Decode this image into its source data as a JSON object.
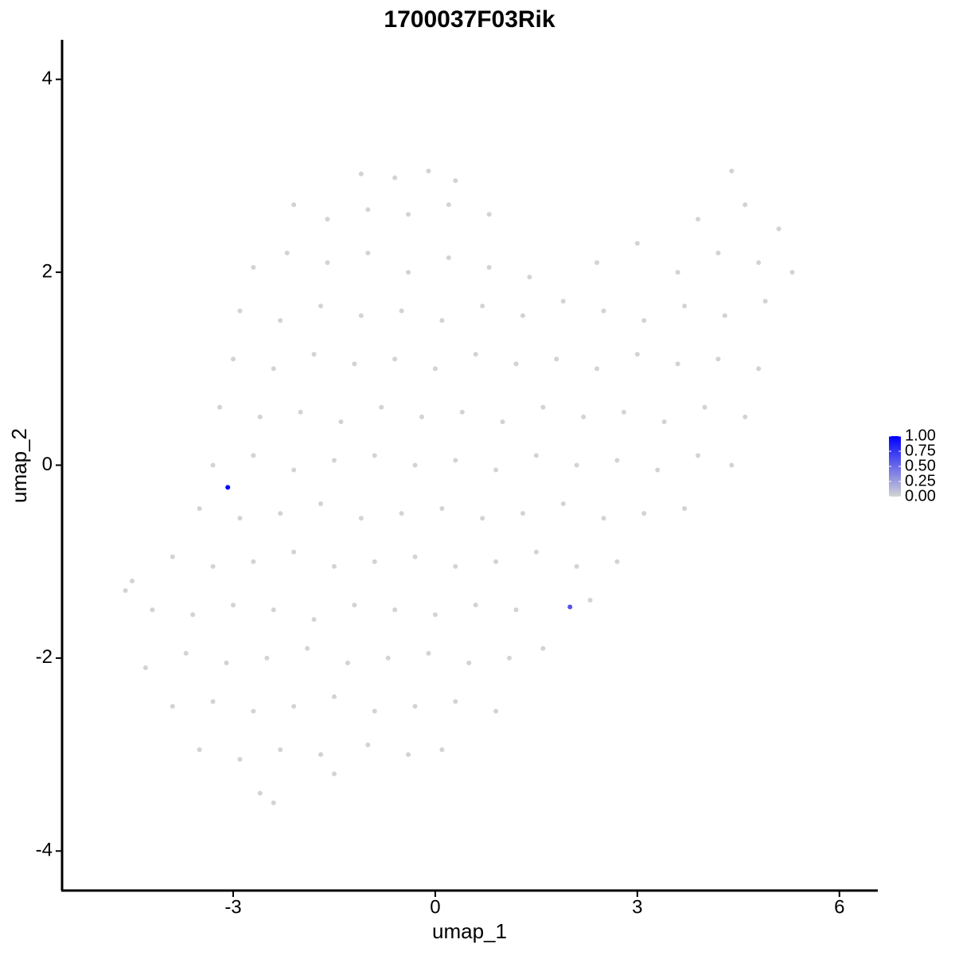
{
  "chart_data": {
    "type": "scatter",
    "title": "1700037F03Rik",
    "xlabel": "umap_1",
    "ylabel": "umap_2",
    "xlim": [
      -5.54,
      6.57
    ],
    "ylim": [
      -4.41,
      4.41
    ],
    "xticks": [
      -3,
      0,
      3,
      6
    ],
    "yticks": [
      -4,
      -2,
      0,
      2,
      4
    ],
    "low_color": "#d3d3d3",
    "high_color": "#0000ff",
    "color_lim": [
      0,
      1
    ],
    "color_ticks": [
      {
        "value": 0,
        "label": "0.00"
      },
      {
        "value": 0.25,
        "label": "0.25"
      },
      {
        "value": 0.5,
        "label": "0.50"
      },
      {
        "value": 0.75,
        "label": "0.75"
      },
      {
        "value": 1,
        "label": "1.00"
      }
    ],
    "x": [
      -1.1,
      -0.6,
      -0.1,
      0.3,
      4.4,
      -2.1,
      -1.6,
      -1.0,
      -0.4,
      0.2,
      0.8,
      3.9,
      4.6,
      5.1,
      -2.7,
      -2.2,
      -1.6,
      -1.0,
      -0.4,
      0.2,
      0.8,
      1.4,
      2.4,
      3.0,
      3.6,
      4.2,
      4.8,
      5.3,
      -2.9,
      -2.3,
      -1.7,
      -1.1,
      -0.5,
      0.1,
      0.7,
      1.3,
      1.9,
      2.5,
      3.1,
      3.7,
      4.3,
      4.9,
      -3.0,
      -2.4,
      -1.8,
      -1.2,
      -0.6,
      0.0,
      0.6,
      1.2,
      1.8,
      2.4,
      3.0,
      3.6,
      4.2,
      4.8,
      -3.2,
      -2.6,
      -2.0,
      -1.4,
      -0.8,
      -0.2,
      0.4,
      1.0,
      1.6,
      2.2,
      2.8,
      3.4,
      4.0,
      4.6,
      -3.3,
      -2.7,
      -2.1,
      -1.5,
      -0.9,
      -0.3,
      0.3,
      0.9,
      1.5,
      2.1,
      2.7,
      3.3,
      3.9,
      4.4,
      -3.5,
      -2.9,
      -2.3,
      -1.7,
      -1.1,
      -0.5,
      0.1,
      0.7,
      1.3,
      1.9,
      2.5,
      3.1,
      3.7,
      -3.9,
      -3.3,
      -2.7,
      -2.1,
      -1.5,
      -0.9,
      -0.3,
      0.3,
      0.9,
      1.5,
      2.1,
      2.7,
      -4.6,
      -4.5,
      -4.2,
      -3.6,
      -3.0,
      -2.4,
      -1.8,
      -1.2,
      -0.6,
      0.0,
      0.6,
      1.2,
      2.3,
      -4.3,
      -3.7,
      -3.1,
      -2.5,
      -1.9,
      -1.3,
      -0.7,
      -0.1,
      0.5,
      1.1,
      1.6,
      -3.9,
      -3.3,
      -2.7,
      -2.1,
      -1.5,
      -0.9,
      -0.3,
      0.3,
      0.9,
      -3.5,
      -2.9,
      -2.3,
      -1.7,
      -1.0,
      -0.4,
      0.1,
      -2.6,
      -2.4,
      -1.5,
      -3.08,
      2.0
    ],
    "y": [
      3.02,
      2.98,
      3.05,
      2.95,
      3.05,
      2.7,
      2.55,
      2.65,
      2.6,
      2.7,
      2.6,
      2.55,
      2.7,
      2.45,
      2.05,
      2.2,
      2.1,
      2.2,
      2.0,
      2.15,
      2.05,
      1.95,
      2.1,
      2.3,
      2.0,
      2.2,
      2.1,
      2.0,
      1.6,
      1.5,
      1.65,
      1.55,
      1.6,
      1.5,
      1.65,
      1.55,
      1.7,
      1.6,
      1.5,
      1.65,
      1.55,
      1.7,
      1.1,
      1.0,
      1.15,
      1.05,
      1.1,
      1.0,
      1.15,
      1.05,
      1.1,
      1.0,
      1.15,
      1.05,
      1.1,
      1.0,
      0.6,
      0.5,
      0.55,
      0.45,
      0.6,
      0.5,
      0.55,
      0.45,
      0.6,
      0.5,
      0.55,
      0.45,
      0.6,
      0.5,
      0.0,
      0.1,
      -0.05,
      0.05,
      0.1,
      0.0,
      0.05,
      -0.05,
      0.1,
      0.0,
      0.05,
      -0.05,
      0.1,
      0.0,
      -0.45,
      -0.55,
      -0.5,
      -0.4,
      -0.55,
      -0.5,
      -0.45,
      -0.55,
      -0.5,
      -0.4,
      -0.55,
      -0.5,
      -0.45,
      -0.95,
      -1.05,
      -1.0,
      -0.9,
      -1.05,
      -1.0,
      -0.95,
      -1.05,
      -1.0,
      -0.9,
      -1.05,
      -1.0,
      -1.3,
      -1.2,
      -1.5,
      -1.55,
      -1.45,
      -1.5,
      -1.6,
      -1.45,
      -1.5,
      -1.55,
      -1.45,
      -1.5,
      -1.4,
      -2.1,
      -1.95,
      -2.05,
      -2.0,
      -1.9,
      -2.05,
      -2.0,
      -1.95,
      -2.05,
      -2.0,
      -1.9,
      -2.5,
      -2.45,
      -2.55,
      -2.5,
      -2.4,
      -2.55,
      -2.5,
      -2.45,
      -2.55,
      -2.95,
      -3.05,
      -2.95,
      -3.0,
      -2.9,
      -3.0,
      -2.95,
      -3.4,
      -3.5,
      -3.2,
      -0.23,
      -1.47
    ],
    "expression": [
      0,
      0,
      0,
      0,
      0,
      0,
      0,
      0,
      0,
      0,
      0,
      0,
      0,
      0,
      0,
      0,
      0,
      0,
      0,
      0,
      0,
      0,
      0,
      0,
      0,
      0,
      0,
      0,
      0,
      0,
      0,
      0,
      0,
      0,
      0,
      0,
      0,
      0,
      0,
      0,
      0,
      0,
      0,
      0,
      0,
      0,
      0,
      0,
      0,
      0,
      0,
      0,
      0,
      0,
      0,
      0,
      0,
      0,
      0,
      0,
      0,
      0,
      0,
      0,
      0,
      0,
      0,
      0,
      0,
      0,
      0,
      0,
      0,
      0,
      0,
      0,
      0,
      0,
      0,
      0,
      0,
      0,
      0,
      0,
      0,
      0,
      0,
      0,
      0,
      0,
      0,
      0,
      0,
      0,
      0,
      0,
      0,
      0,
      0,
      0,
      0,
      0,
      0,
      0,
      0,
      0,
      0,
      0,
      0,
      0,
      0,
      0,
      0,
      0,
      0,
      0,
      0,
      0,
      0,
      0,
      0,
      0,
      0,
      0,
      0,
      0,
      0,
      0,
      0,
      0,
      0,
      0,
      0,
      0,
      0,
      0,
      0,
      0,
      0,
      0,
      0,
      0,
      0,
      0,
      0,
      0,
      0,
      0,
      0,
      0,
      0,
      0,
      1,
      0.6
    ]
  }
}
